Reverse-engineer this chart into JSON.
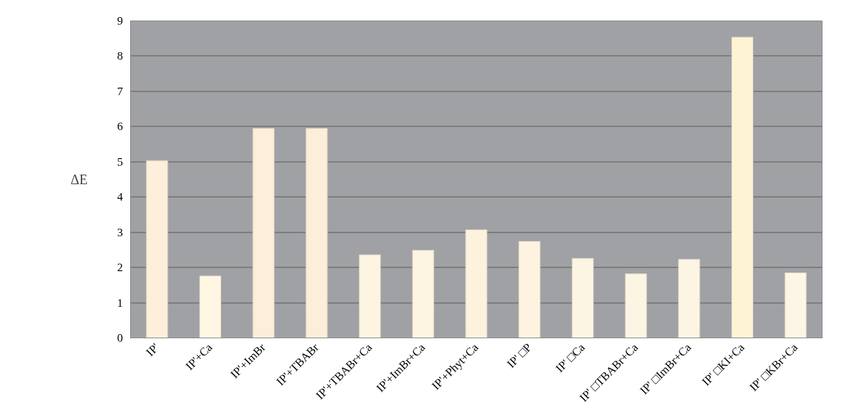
{
  "chart_data": {
    "type": "bar",
    "ylabel": "ΔE",
    "categories": [
      "IP'",
      "IP'+Ca",
      "IP'+ImBr",
      "IP'+TBABr",
      "IP'+TBABr+Ca",
      "IP'+ImBr+Ca",
      "IP'+Phyt+Ca",
      "IP' □P",
      "IP' □Ca",
      "IP' □TBABr+Ca",
      "IP' □ImBr+Ca",
      "IP' □KI+Ca",
      "IP' □KBr+Ca"
    ],
    "values": [
      5.03,
      1.76,
      5.95,
      5.95,
      2.36,
      2.49,
      3.07,
      2.74,
      2.26,
      1.82,
      2.23,
      8.54,
      1.85
    ],
    "colors": [
      "#fdefd9",
      "#fff7e3",
      "#fdeed9",
      "#fdeed9",
      "#fdf4e2",
      "#fdf4e2",
      "#fdf2de",
      "#fdf3e0",
      "#fdf5e3",
      "#fdf5e3",
      "#fdf5e3",
      "#fef3d3",
      "#fdf6e6"
    ],
    "ylim": [
      0,
      9
    ],
    "yticks": [
      0,
      1,
      2,
      3,
      4,
      5,
      6,
      7,
      8,
      9
    ],
    "grid": "y"
  }
}
